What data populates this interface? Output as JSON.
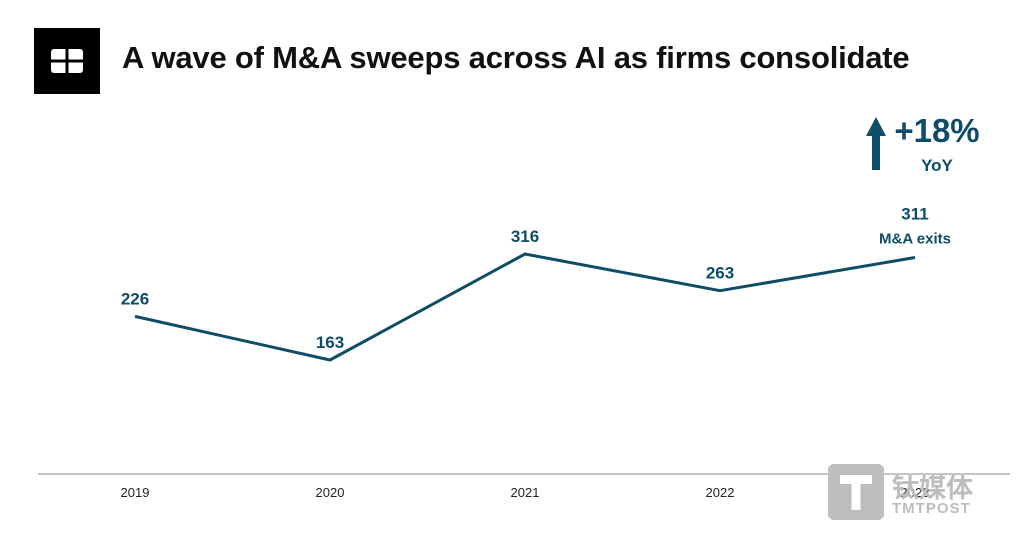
{
  "header": {
    "title": "A wave of M&A sweeps across AI as firms consolidate",
    "logo_icon": "cb-insights-logo-icon"
  },
  "callout": {
    "change": "+18%",
    "period": "YoY",
    "arrow_icon": "arrow-up-icon"
  },
  "chart_data": {
    "type": "line",
    "title": "A wave of M&A sweeps across AI as firms consolidate",
    "categories": [
      "2019",
      "2020",
      "2021",
      "2022",
      "2023"
    ],
    "series": [
      {
        "values": [
          226,
          163,
          316,
          263,
          311
        ]
      }
    ],
    "annotations": [
      {
        "x": "2023",
        "value": "311",
        "text": "M&A exits"
      }
    ],
    "xlabel": "",
    "ylabel": "",
    "grid": false,
    "color": "#0f4c68"
  },
  "watermark": {
    "chinese": "钛媒体",
    "english": "TMTPOST"
  }
}
